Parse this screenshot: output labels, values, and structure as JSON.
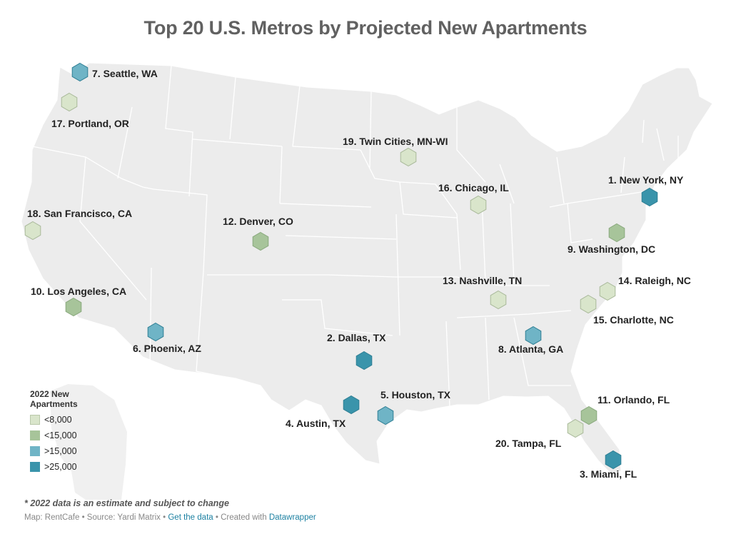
{
  "title": "Top 20 U.S. Metros by Projected New Apartments",
  "legend": {
    "title": "2022 New Apartments",
    "items": [
      {
        "label": "<8,000",
        "color": "#d9e5cb",
        "category": "lt8k"
      },
      {
        "label": "<15,000",
        "color": "#a7c49a",
        "category": "lt15k"
      },
      {
        "label": ">15,000",
        "color": "#6fb4c6",
        "category": "gt15k"
      },
      {
        "label": ">25,000",
        "color": "#3a94ab",
        "category": "gt25k"
      }
    ]
  },
  "metros": [
    {
      "label": "1. New York, NY",
      "category": "gt25k"
    },
    {
      "label": "2. Dallas, TX",
      "category": "gt25k"
    },
    {
      "label": "3. Miami, FL",
      "category": "gt25k"
    },
    {
      "label": "4. Austin, TX",
      "category": "gt25k"
    },
    {
      "label": "5. Houston, TX",
      "category": "gt15k"
    },
    {
      "label": "6. Phoenix, AZ",
      "category": "gt15k"
    },
    {
      "label": "7. Seattle, WA",
      "category": "gt15k"
    },
    {
      "label": "8. Atlanta, GA",
      "category": "gt15k"
    },
    {
      "label": "9. Washington, DC",
      "category": "lt15k"
    },
    {
      "label": "10. Los Angeles, CA",
      "category": "lt15k"
    },
    {
      "label": "11. Orlando, FL",
      "category": "lt15k"
    },
    {
      "label": "12. Denver, CO",
      "category": "lt15k"
    },
    {
      "label": "13. Nashville, TN",
      "category": "lt8k"
    },
    {
      "label": "14. Raleigh, NC",
      "category": "lt8k"
    },
    {
      "label": "15. Charlotte, NC",
      "category": "lt8k"
    },
    {
      "label": "16. Chicago, IL",
      "category": "lt8k"
    },
    {
      "label": "17. Portland, OR",
      "category": "lt8k"
    },
    {
      "label": "18. San Francisco, CA",
      "category": "lt8k"
    },
    {
      "label": "19. Twin Cities, MN-WI",
      "category": "lt8k"
    },
    {
      "label": "20. Tampa, FL",
      "category": "lt8k"
    }
  ],
  "footnote": "* 2022 data is an estimate and subject to change",
  "credits": {
    "map": "Map: RentCafe",
    "source": "Source: Yardi Matrix",
    "get_data": "Get the data",
    "created_with": "Created with",
    "tool": "Datawrapper",
    "separator": "•"
  }
}
